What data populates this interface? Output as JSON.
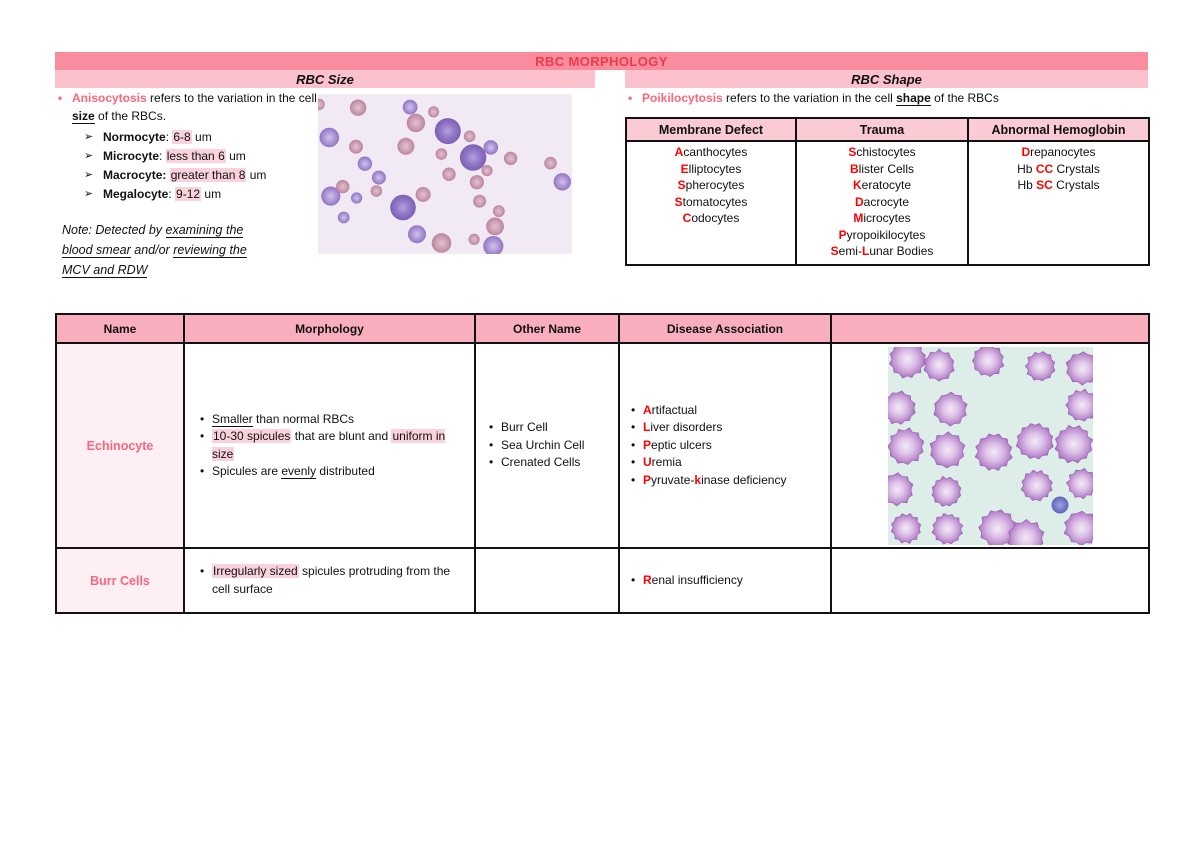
{
  "title": "RBC MORPHOLOGY",
  "colors": {
    "title_bar": "#f98d9e",
    "title_text": "#ee3a49",
    "section_bar": "#fbc1cd",
    "shape_table_header": "#fbcbd5",
    "table_header": "#f9aebe",
    "name_cell_bg": "#fdeff3",
    "accent_rose": "#f8677c",
    "red_letter": "#ff0000",
    "highlight": "#fad2dc"
  },
  "size_section": {
    "header": "RBC Size",
    "intro": [
      {
        "t": "Anisocytosis",
        "c": "rose"
      },
      {
        "t": " refers to the variation in the cell "
      },
      {
        "t": "size",
        "c": "bu"
      },
      {
        "t": " of the RBCs."
      }
    ],
    "items": [
      [
        {
          "t": "Normocyte",
          "c": "b"
        },
        {
          "t": ": "
        },
        {
          "t": "6-8",
          "c": "hl"
        },
        {
          "t": " um"
        }
      ],
      [
        {
          "t": "Microcyte",
          "c": "b"
        },
        {
          "t": ": "
        },
        {
          "t": "less than 6",
          "c": "hl"
        },
        {
          "t": " um"
        }
      ],
      [
        {
          "t": "Macrocyte:",
          "c": "b"
        },
        {
          "t": " "
        },
        {
          "t": "greater than 8",
          "c": "hl"
        },
        {
          "t": " um"
        }
      ],
      [
        {
          "t": "Megalocyte",
          "c": "b"
        },
        {
          "t": ": "
        },
        {
          "t": "9-12",
          "c": "hl"
        },
        {
          "t": " um"
        }
      ]
    ],
    "note": [
      {
        "t": "Note: Detected by "
      },
      {
        "t": "examining the blood smear",
        "c": "u"
      },
      {
        "t": " and/or "
      },
      {
        "t": "reviewing the MCV and RDW",
        "c": "u"
      }
    ],
    "image_description": "blood smear micrograph showing RBCs of varying sizes"
  },
  "shape_section": {
    "header": "RBC Shape",
    "intro": [
      {
        "t": "Poikilocytosis",
        "c": "rose"
      },
      {
        "t": " refers to the variation in the cell "
      },
      {
        "t": "shape",
        "c": "bu"
      },
      {
        "t": " of the RBCs"
      }
    ],
    "table": {
      "headers": [
        "Membrane Defect",
        "Trauma",
        "Abnormal Hemoglobin"
      ],
      "membrane_defect": [
        [
          {
            "t": "A",
            "c": "r"
          },
          {
            "t": "canthocytes"
          }
        ],
        [
          {
            "t": "E",
            "c": "r"
          },
          {
            "t": "lliptocytes"
          }
        ],
        [
          {
            "t": "S",
            "c": "r"
          },
          {
            "t": "pherocytes"
          }
        ],
        [
          {
            "t": "S",
            "c": "r"
          },
          {
            "t": "tomatocytes"
          }
        ],
        [
          {
            "t": "C",
            "c": "r"
          },
          {
            "t": "odocytes"
          }
        ]
      ],
      "trauma": [
        [
          {
            "t": "S",
            "c": "r"
          },
          {
            "t": "chistocytes"
          }
        ],
        [
          {
            "t": "B",
            "c": "r"
          },
          {
            "t": "lister Cells"
          }
        ],
        [
          {
            "t": "K",
            "c": "r"
          },
          {
            "t": "eratocyte"
          }
        ],
        [
          {
            "t": "D",
            "c": "r"
          },
          {
            "t": "acrocyte"
          }
        ],
        [
          {
            "t": "M",
            "c": "r"
          },
          {
            "t": "icrocytes"
          }
        ],
        [
          {
            "t": "P",
            "c": "r"
          },
          {
            "t": "yropoikilocytes"
          }
        ],
        [
          {
            "t": "S",
            "c": "r"
          },
          {
            "t": "emi-"
          },
          {
            "t": "L",
            "c": "r"
          },
          {
            "t": "unar Bodies"
          }
        ]
      ],
      "abnormal_hemoglobin": [
        [
          {
            "t": "D",
            "c": "r"
          },
          {
            "t": "repanocytes"
          }
        ],
        [
          {
            "t": "Hb "
          },
          {
            "t": "CC",
            "c": "r"
          },
          {
            "t": " Crystals"
          }
        ],
        [
          {
            "t": "Hb "
          },
          {
            "t": "SC",
            "c": "r"
          },
          {
            "t": " Crystals"
          }
        ]
      ]
    }
  },
  "morphology_table": {
    "headers": [
      "Name",
      "Morphology",
      "Other Name",
      "Disease Association",
      ""
    ],
    "rows": [
      {
        "name": "Echinocyte",
        "morphology": [
          [
            {
              "t": "Smaller",
              "c": "u"
            },
            {
              "t": " than normal RBCs"
            }
          ],
          [
            {
              "t": "10-30 spicules",
              "c": "hl"
            },
            {
              "t": " that are blunt and "
            },
            {
              "t": "uniform in size",
              "c": "hl"
            }
          ],
          [
            {
              "t": "Spicules are "
            },
            {
              "t": "evenly",
              "c": "u"
            },
            {
              "t": " distributed"
            }
          ]
        ],
        "other_names": [
          [
            {
              "t": "Burr Cell"
            }
          ],
          [
            {
              "t": "Sea Urchin Cell"
            }
          ],
          [
            {
              "t": "Crenated Cells"
            }
          ]
        ],
        "diseases": [
          [
            {
              "t": "A",
              "c": "r"
            },
            {
              "t": "rtifactual"
            }
          ],
          [
            {
              "t": "L",
              "c": "r"
            },
            {
              "t": "iver disorders"
            }
          ],
          [
            {
              "t": "P",
              "c": "r"
            },
            {
              "t": "eptic ulcers"
            }
          ],
          [
            {
              "t": "U",
              "c": "r"
            },
            {
              "t": "remia"
            }
          ],
          [
            {
              "t": "P",
              "c": "r"
            },
            {
              "t": "yruvate-"
            },
            {
              "t": "k",
              "c": "r"
            },
            {
              "t": "inase deficiency"
            }
          ]
        ],
        "image_description": "micrograph of echinocytes with blunt spicules on pale cyan background"
      },
      {
        "name": "Burr Cells",
        "morphology": [
          [
            {
              "t": "Irregularly sized",
              "c": "hl"
            },
            {
              "t": " spicules protruding from the cell surface"
            }
          ]
        ],
        "other_names": [],
        "diseases": [
          [
            {
              "t": "R",
              "c": "r"
            },
            {
              "t": "enal insufficiency"
            }
          ]
        ]
      }
    ]
  }
}
